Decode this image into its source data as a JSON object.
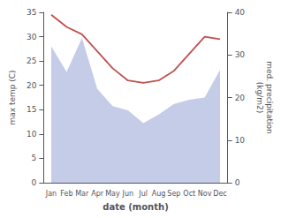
{
  "chart_data": {
    "type": "line",
    "xlabel": "date (month)",
    "ylabel": "max temp (C)",
    "y2label": "med. precipitation\n(kg/m2)",
    "categories": [
      "Jan",
      "Feb",
      "Mar",
      "Apr",
      "May",
      "Jun",
      "Jul",
      "Aug",
      "Sep",
      "Oct",
      "Nov",
      "Dec"
    ],
    "series": [
      {
        "type": "area",
        "color": "#c5cce8",
        "axis": "y2",
        "values": [
          32.0,
          26.0,
          34.0,
          22.0,
          18.0,
          17.0,
          14.0,
          16.0,
          18.5,
          19.5,
          20.0,
          26.5
        ]
      },
      {
        "type": "line",
        "color": "#c0504d",
        "values": [
          34.5,
          32.0,
          30.5,
          27.0,
          23.5,
          21.0,
          20.5,
          21.0,
          23.0,
          26.5,
          30.0,
          29.5
        ]
      }
    ],
    "ylim": [
      0,
      35
    ],
    "yticks": [
      0,
      5,
      10,
      15,
      20,
      25,
      30,
      35
    ],
    "y2lim": [
      0,
      40
    ],
    "y2ticks": [
      0,
      10,
      20,
      30,
      40
    ],
    "grid": false
  }
}
